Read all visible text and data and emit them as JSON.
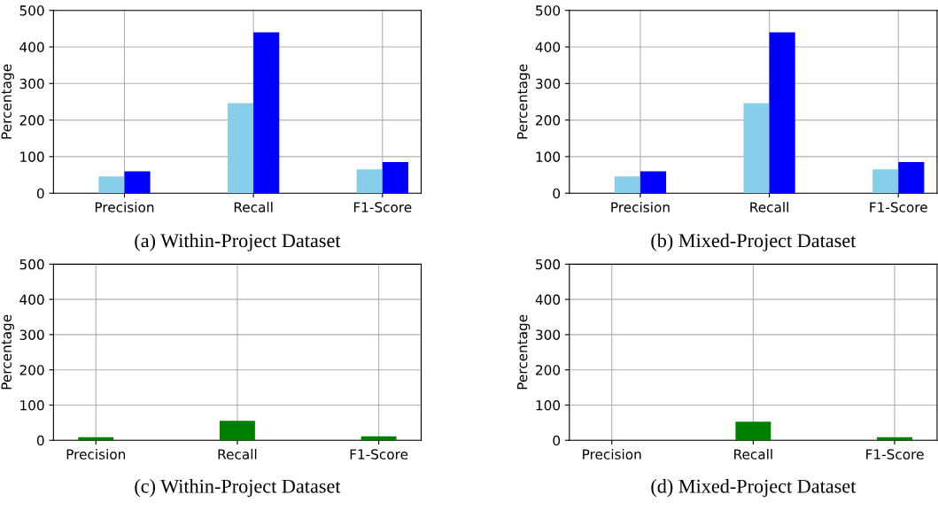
{
  "chart_data": [
    {
      "type": "bar",
      "title": "(a) Within-Project Dataset",
      "ylabel": "Percentage",
      "categories": [
        "Precision",
        "Recall",
        "F1-Score"
      ],
      "series": [
        {
          "color": "#87ceeb",
          "values": [
            46,
            246,
            65
          ]
        },
        {
          "color": "#0000ff",
          "values": [
            60,
            440,
            85
          ]
        }
      ],
      "ylim": [
        0,
        500
      ],
      "yticks": [
        0,
        100,
        200,
        300,
        400,
        500
      ],
      "grid": true
    },
    {
      "type": "bar",
      "title": "(b) Mixed-Project Dataset",
      "ylabel": "Percentage",
      "categories": [
        "Precision",
        "Recall",
        "F1-Score"
      ],
      "series": [
        {
          "color": "#87ceeb",
          "values": [
            46,
            246,
            65
          ]
        },
        {
          "color": "#0000ff",
          "values": [
            60,
            440,
            85
          ]
        }
      ],
      "ylim": [
        0,
        500
      ],
      "yticks": [
        0,
        100,
        200,
        300,
        400,
        500
      ],
      "grid": true
    },
    {
      "type": "bar",
      "title": "(c) Within-Project Dataset",
      "ylabel": "Percentage",
      "categories": [
        "Precision",
        "Recall",
        "F1-Score"
      ],
      "series": [
        {
          "color": "#008000",
          "values": [
            9,
            55,
            11
          ]
        }
      ],
      "ylim": [
        0,
        500
      ],
      "yticks": [
        0,
        100,
        200,
        300,
        400,
        500
      ],
      "grid": true
    },
    {
      "type": "bar",
      "title": "(d) Mixed-Project Dataset",
      "ylabel": "Percentage",
      "categories": [
        "Precision",
        "Recall",
        "F1-Score"
      ],
      "series": [
        {
          "color": "#008000",
          "values": [
            0,
            53,
            9
          ]
        }
      ],
      "ylim": [
        0,
        500
      ],
      "yticks": [
        0,
        100,
        200,
        300,
        400,
        500
      ],
      "grid": true
    }
  ]
}
